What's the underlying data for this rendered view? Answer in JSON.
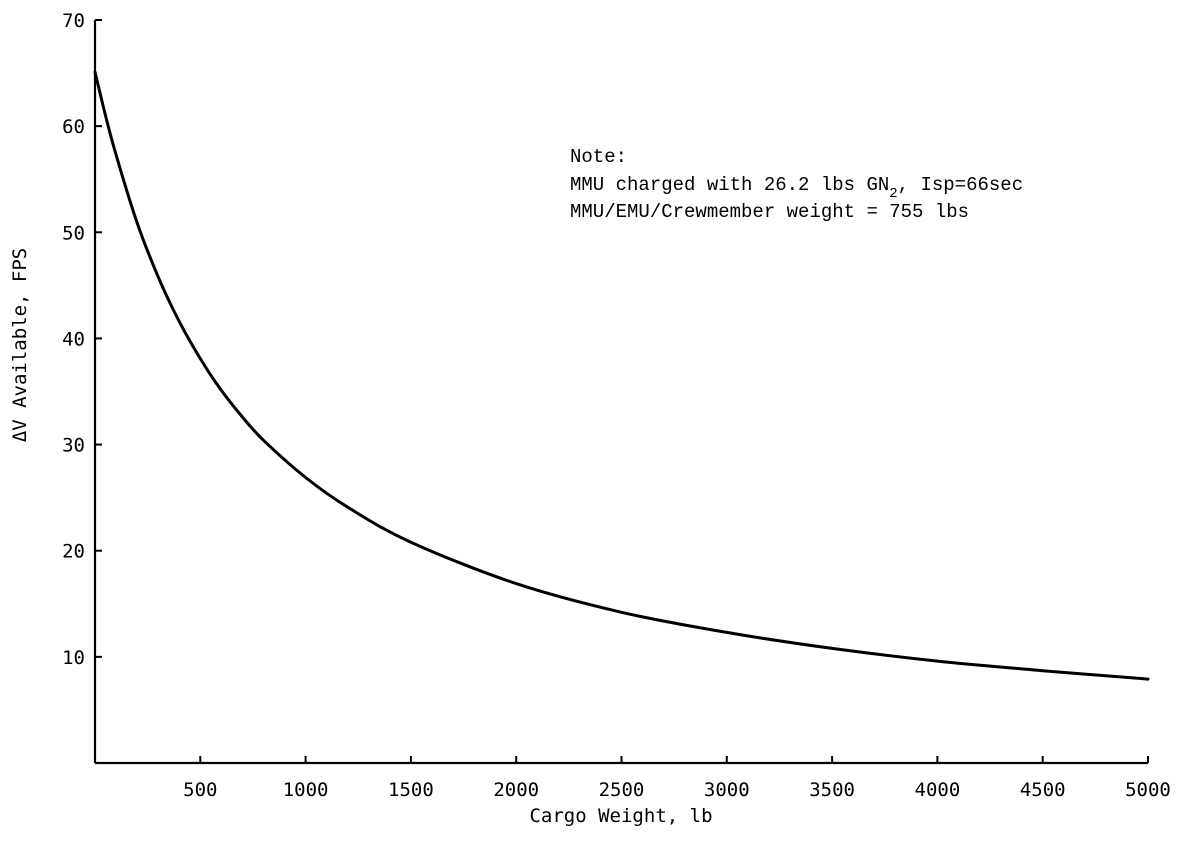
{
  "chart_data": {
    "type": "line",
    "title": "",
    "xlabel": "Cargo Weight, lb",
    "ylabel": "ΔV Available, FPS",
    "xlim": [
      0,
      5000
    ],
    "ylim": [
      0,
      70
    ],
    "xticks": [
      500,
      1000,
      1500,
      2000,
      2500,
      3000,
      3500,
      4000,
      4500,
      5000
    ],
    "yticks": [
      10,
      20,
      30,
      40,
      50,
      60,
      70
    ],
    "grid": false,
    "legend": "none",
    "series": [
      {
        "x": [
          0,
          50,
          100,
          200,
          300,
          400,
          500,
          600,
          700,
          800,
          1000,
          1200,
          1500,
          2000,
          2500,
          3000,
          3500,
          4000,
          4500,
          5000
        ],
        "y": [
          65.1,
          61.0,
          57.3,
          50.9,
          45.8,
          41.6,
          38.1,
          35.1,
          32.6,
          30.4,
          26.9,
          24.1,
          20.8,
          16.9,
          14.2,
          12.3,
          10.8,
          9.6,
          8.7,
          7.9
        ]
      }
    ],
    "annotations": [
      {
        "lines": [
          "Note:",
          "MMU charged with 26.2 lbs GN",
          ", Isp=66sec",
          "MMU/EMU/Crewmember weight = 755 lbs"
        ],
        "subscript": "2"
      }
    ]
  }
}
